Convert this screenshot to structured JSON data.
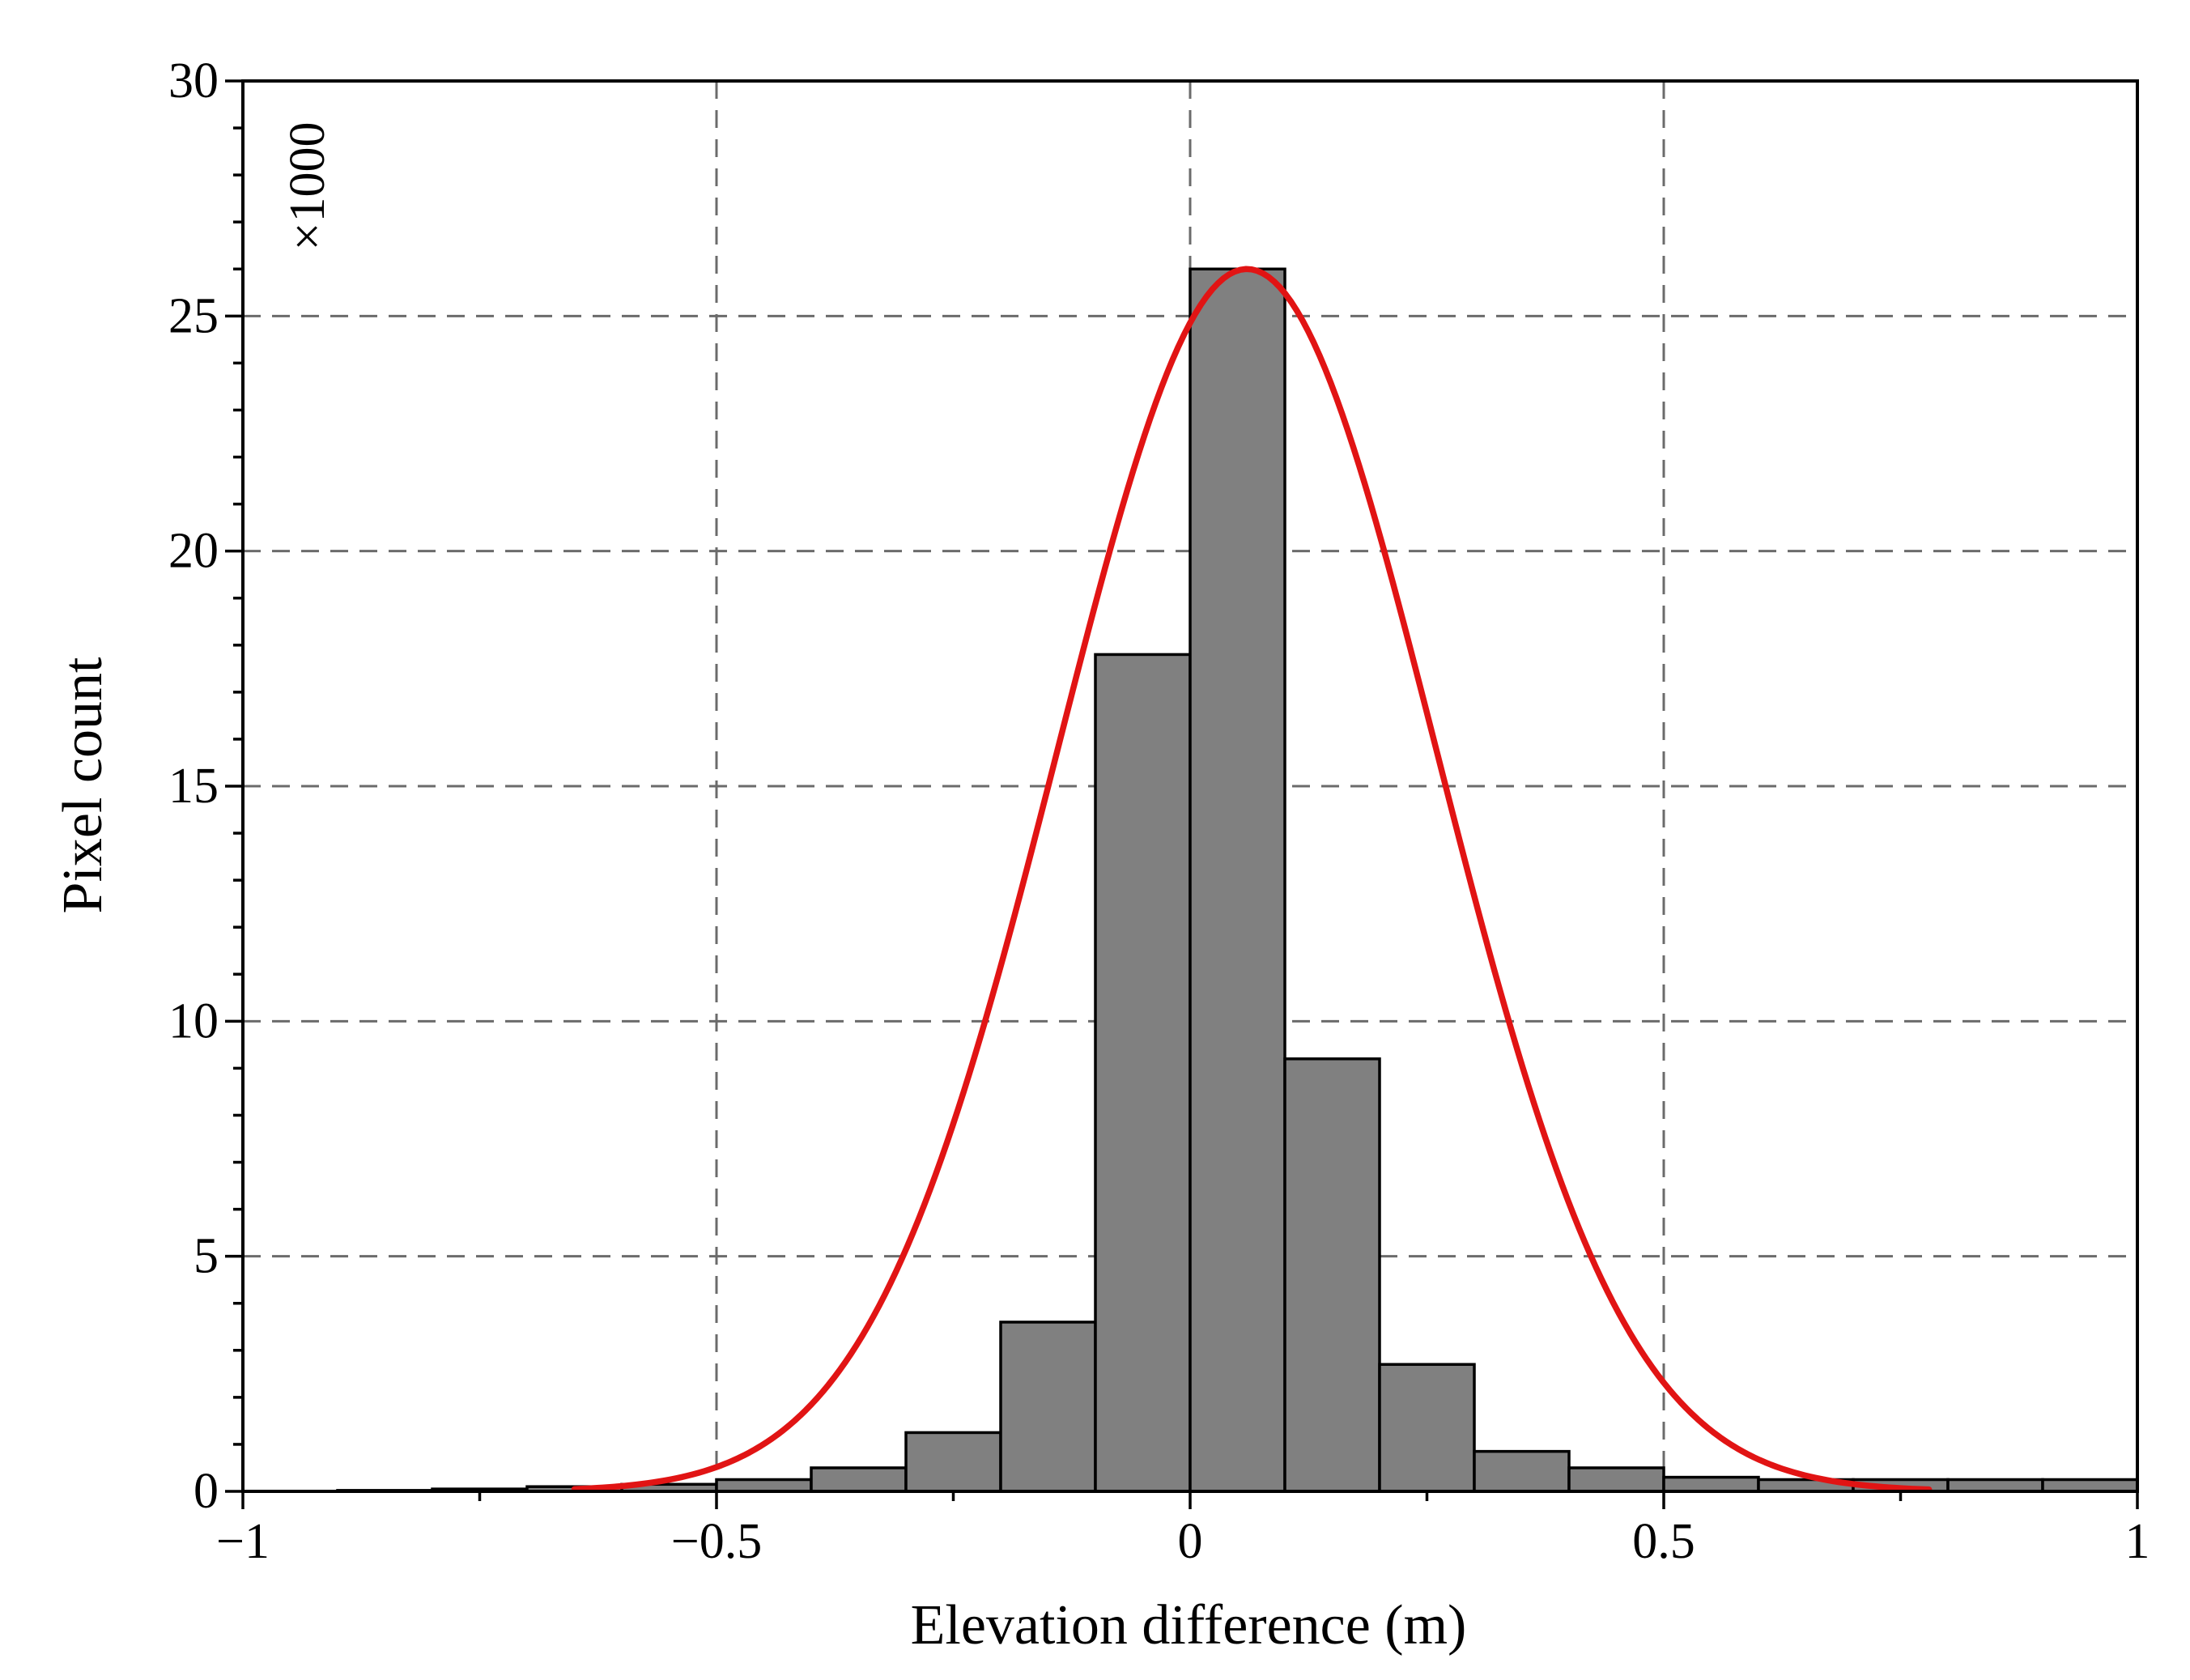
{
  "chart_data": {
    "type": "bar",
    "xlabel": "Elevation difference (m)",
    "ylabel": "Pixel count",
    "y_scale_note": "×1000",
    "xlim": [
      -1,
      1
    ],
    "ylim": [
      0,
      30
    ],
    "grid": true,
    "x_ticks": [
      {
        "value": -1,
        "label": "−1"
      },
      {
        "value": -0.5,
        "label": "−0.5"
      },
      {
        "value": 0,
        "label": "0"
      },
      {
        "value": 0.5,
        "label": "0.5"
      },
      {
        "value": 1,
        "label": "1"
      }
    ],
    "y_ticks": [
      {
        "value": 0,
        "label": "0"
      },
      {
        "value": 5,
        "label": "5"
      },
      {
        "value": 10,
        "label": "10"
      },
      {
        "value": 15,
        "label": "15"
      },
      {
        "value": 20,
        "label": "20"
      },
      {
        "value": 25,
        "label": "25"
      },
      {
        "value": 30,
        "label": "30"
      }
    ],
    "histogram": {
      "bin_edges": [
        -1.0,
        -0.9,
        -0.8,
        -0.7,
        -0.6,
        -0.5,
        -0.4,
        -0.3,
        -0.2,
        -0.1,
        0.0,
        0.1,
        0.2,
        0.3,
        0.4,
        0.5,
        0.6,
        0.7,
        0.8,
        0.9,
        1.0
      ],
      "counts": [
        0.0,
        0.02,
        0.05,
        0.1,
        0.15,
        0.25,
        0.5,
        1.25,
        3.6,
        17.8,
        26.0,
        9.2,
        2.7,
        0.85,
        0.5,
        0.3,
        0.25,
        0.25,
        0.25,
        0.25
      ],
      "color": "#808080"
    },
    "fit_curve": {
      "type": "normal",
      "mean": 0.06,
      "std": 0.2,
      "peak": 26,
      "x_range": [
        -0.65,
        0.78
      ],
      "color": "#e11414"
    }
  }
}
